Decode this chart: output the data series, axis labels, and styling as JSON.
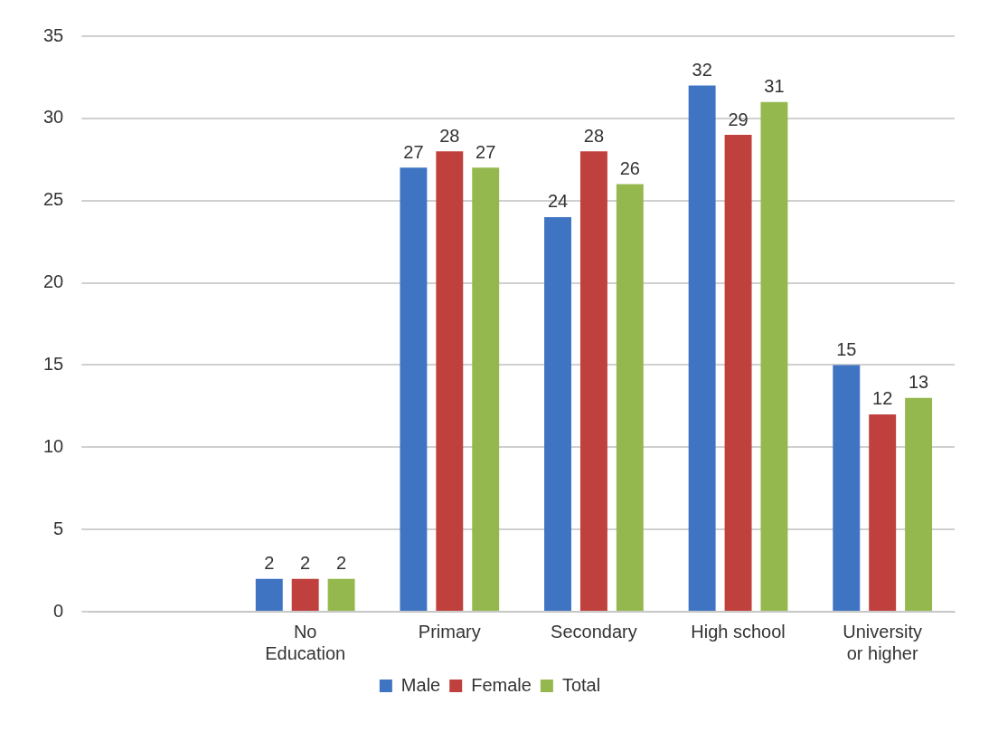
{
  "chart_data": {
    "type": "bar",
    "categories": [
      null,
      "No Education",
      "Primary",
      "Secondary",
      "High school",
      "University or higher"
    ],
    "series": [
      {
        "name": "Male",
        "color": "#3f74c2",
        "values": [
          null,
          2,
          27,
          24,
          32,
          15
        ]
      },
      {
        "name": "Female",
        "color": "#c0403d",
        "values": [
          null,
          2,
          28,
          28,
          29,
          12
        ]
      },
      {
        "name": "Total",
        "color": "#95b84e",
        "values": [
          null,
          2,
          27,
          26,
          31,
          13
        ]
      }
    ],
    "ylim": [
      0,
      35
    ],
    "yticks": [
      0,
      5,
      10,
      15,
      20,
      25,
      30,
      35
    ],
    "grid": "y",
    "legend": "bottom",
    "data_labels": true
  }
}
